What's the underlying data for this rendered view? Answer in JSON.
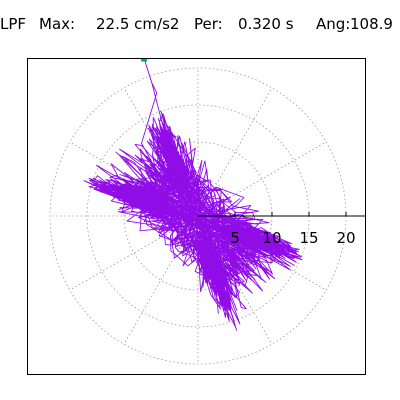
{
  "header": {
    "filter": "LPF",
    "max_label": "Max:",
    "max_value": "22.5 cm/s2",
    "period_label": "Per:",
    "period_value": "0.320 s",
    "angle_label": "Ang:",
    "angle_value": "108.9"
  },
  "colors": {
    "trace": "#8a00e6",
    "marker": "#00a383",
    "grid": "#9a9a9a",
    "axis": "#000000"
  },
  "chart_data": {
    "type": "scatter",
    "title": "",
    "xlabel": "",
    "ylabel": "",
    "unit": "cm/s2",
    "radial_ticks": [
      5,
      10,
      15,
      20
    ],
    "radial_tick_labels": [
      "5",
      "10",
      "15",
      "20"
    ],
    "grid": true,
    "grid_style": "polar-dotted",
    "angular_spokes_deg": [
      0,
      30,
      60,
      90,
      120,
      150,
      180,
      210,
      240,
      270,
      300,
      330
    ],
    "peak": {
      "magnitude": 22.5,
      "angle_deg": 108.9
    },
    "orbit_envelope": {
      "major_radius": 14,
      "minor_radius": 6.5,
      "orientation_deg": 135,
      "density": "high"
    }
  }
}
